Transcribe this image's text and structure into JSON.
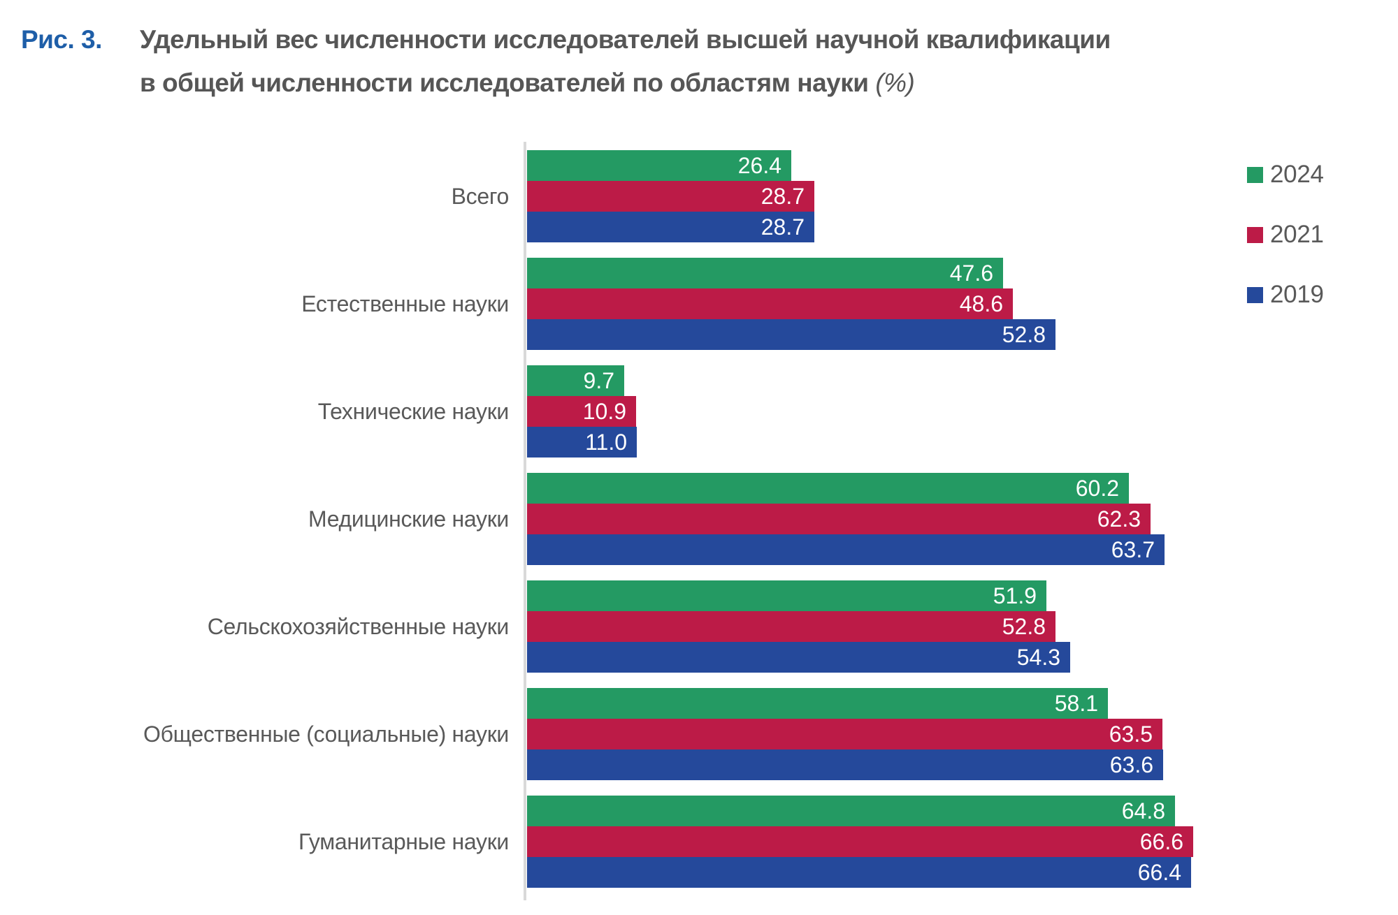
{
  "figure": {
    "label": "Рис. 3.",
    "title_line1": "Удельный вес численности исследователей высшей научной квалификации",
    "title_line2": "в общей численности исследователей по областям науки",
    "unit_note": "(%)"
  },
  "chart_data": {
    "type": "bar",
    "orientation": "horizontal",
    "title": "Удельный вес численности исследователей высшей научной квалификации в общей численности исследователей по областям науки (%)",
    "categories": [
      "Всего",
      "Естественные науки",
      "Технические науки",
      "Медицинские науки",
      "Сельскохозяйственные науки",
      "Общественные (социальные) науки",
      "Гуманитарные науки"
    ],
    "series": [
      {
        "name": "2024",
        "color": "#249A63",
        "values": [
          26.4,
          47.6,
          9.7,
          60.2,
          51.9,
          58.1,
          64.8
        ]
      },
      {
        "name": "2021",
        "color": "#BC1B47",
        "values": [
          28.7,
          48.6,
          10.9,
          62.3,
          52.8,
          63.5,
          66.6
        ]
      },
      {
        "name": "2019",
        "color": "#25499B",
        "values": [
          28.7,
          52.8,
          11.0,
          63.7,
          54.3,
          63.6,
          66.4
        ]
      }
    ],
    "value_labels_decimals": 1,
    "xlim": [
      0,
      70
    ],
    "grid": false,
    "legend_position": "right",
    "colors": {
      "axis_line": "#D9D9D9",
      "category_label": "#595959",
      "value_label": "#FFFFFF",
      "title_text": "#565656",
      "figure_label": "#1E5EA8"
    }
  }
}
